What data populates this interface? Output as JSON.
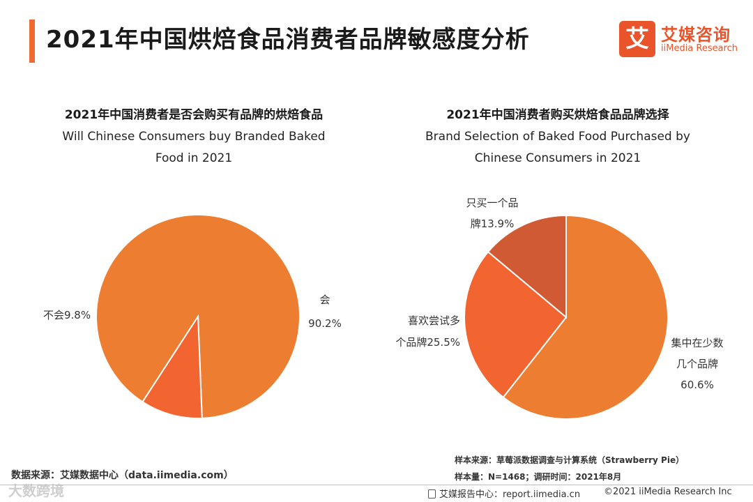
{
  "header": {
    "title": "2021年中国烘焙食品消费者品牌敏感度分析",
    "logo_mark": "艾",
    "logo_cn": "艾媒咨询",
    "logo_en": "iiMedia Research"
  },
  "colors": {
    "accent": "#ef6a32",
    "pie_main": "#ed7d31",
    "pie_alt": "#f26430",
    "pie_dark": "#d05a34"
  },
  "chart_data": [
    {
      "type": "pie",
      "title": "2021年中国消费者是否会购买有品牌的烘焙食品",
      "subtitle_lines": [
        "Will Chinese Consumers buy Branded Baked",
        "Food in 2021"
      ],
      "slices": [
        {
          "label": "会",
          "value": 90.2,
          "label_lines": [
            "会",
            "90.2%"
          ]
        },
        {
          "label": "不会",
          "value": 9.8,
          "label_lines": [
            "不会9.8%"
          ]
        }
      ]
    },
    {
      "type": "pie",
      "title": "2021年中国消费者购买烘焙食品品牌选择",
      "subtitle_lines": [
        "Brand Selection of Baked Food Purchased by",
        "Chinese Consumers in 2021"
      ],
      "slices": [
        {
          "label": "集中在少数几个品牌",
          "value": 60.6,
          "label_lines": [
            "集中在少数",
            "几个品牌",
            "60.6%"
          ]
        },
        {
          "label": "喜欢尝试多个品牌",
          "value": 25.5,
          "label_lines": [
            "喜欢尝试多",
            "个品牌25.5%"
          ]
        },
        {
          "label": "只买一个品牌",
          "value": 13.9,
          "label_lines": [
            "只买一个品",
            "牌13.9%"
          ]
        }
      ]
    }
  ],
  "footer": {
    "source": "数据来源：艾媒数据中心（data.iimedia.com）",
    "sample_source": "样本来源：草莓派数据调查与计算系统（Strawberry Pie）",
    "sample_size": "样本量：N=1468；调研时间：2021年8月",
    "report_center": "艾媒报告中心：report.iimedia.cn",
    "copyright": "©2021  iiMedia Research  Inc",
    "watermark": "大数跨境"
  }
}
